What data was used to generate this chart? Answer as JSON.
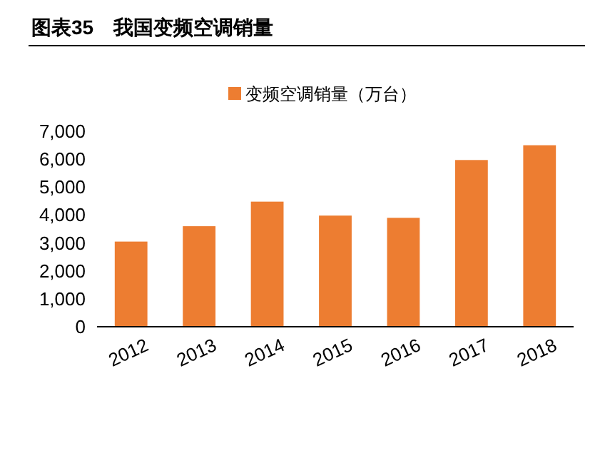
{
  "chart_data": {
    "type": "bar",
    "title": "图表35　我国变频空调销量",
    "categories": [
      "2012",
      "2013",
      "2014",
      "2015",
      "2016",
      "2017",
      "2018"
    ],
    "series": [
      {
        "name": "变频空调销量（万台）",
        "color": "#ed7d31",
        "values": [
          3050,
          3600,
          4480,
          3980,
          3900,
          5970,
          6500
        ]
      }
    ],
    "ylim": [
      0,
      7000
    ],
    "yticks": [
      {
        "value": 0,
        "label": "0"
      },
      {
        "value": 1000,
        "label": "1,000"
      },
      {
        "value": 2000,
        "label": "2,000"
      },
      {
        "value": 3000,
        "label": "3,000"
      },
      {
        "value": 4000,
        "label": "4,000"
      },
      {
        "value": 5000,
        "label": "5,000"
      },
      {
        "value": 6000,
        "label": "6,000"
      },
      {
        "value": 7000,
        "label": "7,000"
      }
    ],
    "legend": "top",
    "grid": false
  }
}
